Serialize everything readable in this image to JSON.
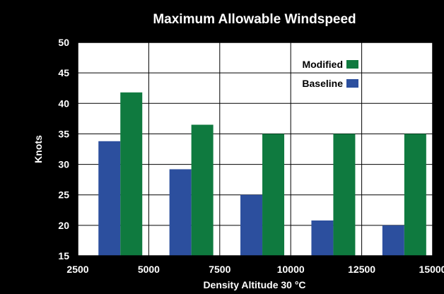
{
  "chart_data": {
    "type": "bar",
    "title": "Maximum Allowable Windspeed",
    "xlabel": "Density Altitude 30 °C",
    "ylabel": "Knots",
    "xlim": [
      2500,
      15000
    ],
    "ylim": [
      15,
      50
    ],
    "xticks": [
      "2500",
      "5000",
      "7500",
      "10000",
      "12500",
      "15000"
    ],
    "yticks": [
      "15",
      "20",
      "25",
      "30",
      "35",
      "40",
      "45",
      "50"
    ],
    "categories": [
      4000,
      6500,
      9000,
      11500,
      14000
    ],
    "series": [
      {
        "name": "Baseline",
        "color": "#2c4f9e",
        "values": [
          33.8,
          29.2,
          25.0,
          20.8,
          20.0
        ]
      },
      {
        "name": "Modified",
        "color": "#0f7a3f",
        "values": [
          41.8,
          36.5,
          35.0,
          35.0,
          35.0
        ]
      }
    ],
    "grid": true,
    "legend_position": "top-right",
    "legend_order": [
      "Modified",
      "Baseline"
    ]
  }
}
